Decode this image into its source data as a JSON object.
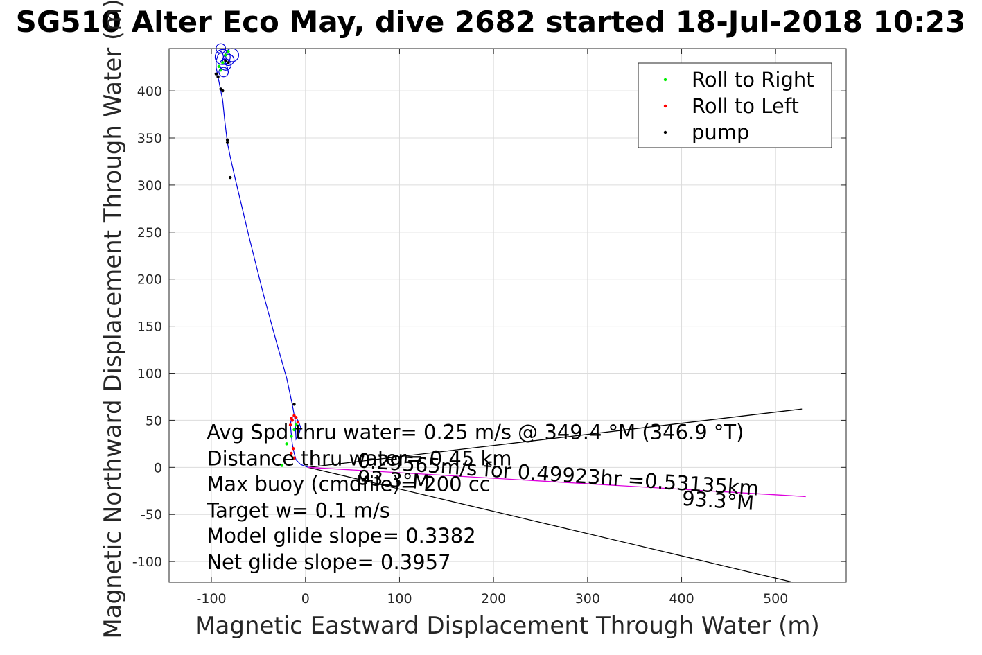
{
  "chart_data": {
    "type": "scatter",
    "title": "SG510 Alter Eco May, dive 2682 started 18-Jul-2018 10:23",
    "xlabel": "Magnetic Eastward Displacement Through Water (m)",
    "ylabel": "Magnetic Northward Displacement Through Water (m)",
    "xlim": [
      -145,
      575
    ],
    "ylim": [
      -122,
      445
    ],
    "xticks": [
      -100,
      0,
      100,
      200,
      300,
      400,
      500
    ],
    "yticks": [
      -100,
      -50,
      0,
      50,
      100,
      150,
      200,
      250,
      300,
      350,
      400
    ],
    "grid": true,
    "legend_position": "top-right",
    "legend": [
      {
        "label": "Roll to Right",
        "color": "#00ee00"
      },
      {
        "label": "Roll to Left",
        "color": "#ff0000"
      },
      {
        "label": "pump",
        "color": "#000000"
      }
    ],
    "track": {
      "color": "#0000dd",
      "x": [
        3,
        -5,
        -10,
        -12,
        -14,
        -15,
        -16,
        -15,
        -12,
        -10,
        -7,
        -5,
        -7,
        -10,
        -11,
        -14,
        -20,
        -30,
        -45,
        -60,
        -75,
        -80,
        -83,
        -86,
        -88,
        -90,
        -91,
        -92,
        -93,
        -94,
        -95,
        -95,
        -93,
        -90,
        -88,
        -87,
        -85,
        -83,
        -82
      ],
      "y": [
        0,
        3,
        8,
        15,
        25,
        35,
        45,
        52,
        55,
        53,
        48,
        42,
        35,
        30,
        50,
        67,
        95,
        130,
        185,
        245,
        308,
        330,
        345,
        370,
        390,
        400,
        405,
        410,
        415,
        420,
        425,
        432,
        438,
        442,
        440,
        435,
        430,
        425,
        420
      ]
    },
    "roll_right": {
      "x": [
        -25,
        -20,
        -15,
        -12,
        -10,
        -88,
        -85,
        -82,
        -90,
        -92
      ],
      "y": [
        2,
        25,
        33,
        40,
        45,
        430,
        438,
        442,
        422,
        426
      ]
    },
    "roll_left": {
      "x": [
        -16,
        -15,
        -14,
        -12,
        -10,
        -8,
        -13,
        -12,
        -15
      ],
      "y": [
        45,
        52,
        50,
        55,
        53,
        48,
        20,
        10,
        15
      ]
    },
    "pump": {
      "x": [
        -12,
        -80,
        -83,
        -83,
        -88,
        -90,
        -93,
        -95,
        -85,
        -82
      ],
      "y": [
        67,
        308,
        345,
        348,
        400,
        402,
        415,
        418,
        432,
        430
      ]
    },
    "circles": [
      {
        "x": -88,
        "y": 436,
        "r": 8
      },
      {
        "x": -85,
        "y": 428,
        "r": 6
      },
      {
        "x": -82,
        "y": 433,
        "r": 6
      },
      {
        "x": -78,
        "y": 438,
        "r": 7
      },
      {
        "x": -87,
        "y": 420,
        "r": 5
      },
      {
        "x": -90,
        "y": 445,
        "r": 5
      }
    ],
    "lines": [
      {
        "color": "#000000",
        "x": [
          3,
          528
        ],
        "y": [
          0,
          62
        ]
      },
      {
        "color": "#000000",
        "x": [
          3,
          518
        ],
        "y": [
          0,
          -122
        ]
      },
      {
        "color": "#dd00dd",
        "x": [
          3,
          532
        ],
        "y": [
          0,
          -31
        ]
      }
    ],
    "annotations": [
      {
        "text": "Avg Spd thru water=  0.25 m/s @ 349.4 °M (346.9 °T)",
        "x": -105,
        "y": 30
      },
      {
        "text": "Distance thru water=  0.45 km",
        "x": -105,
        "y": 2
      },
      {
        "text": "Max buoy (cmdfile)= 200 cc",
        "x": -105,
        "y": -25
      },
      {
        "text": "Target w= 0.1 m/s",
        "x": -105,
        "y": -53
      },
      {
        "text": "Model glide slope= 0.3382",
        "x": -105,
        "y": -80
      },
      {
        "text": "Net glide slope= 0.3957",
        "x": -105,
        "y": -108
      },
      {
        "text": "0.29565m/s for 0.49923hr =0.53135km",
        "x": 55,
        "y": 0,
        "rotate": 4
      },
      {
        "text": "93.3°M",
        "x": 55,
        "y": -18,
        "rotate": 4
      },
      {
        "text": "93.3°M",
        "x": 400,
        "y": -40,
        "rotate": 4
      }
    ]
  }
}
